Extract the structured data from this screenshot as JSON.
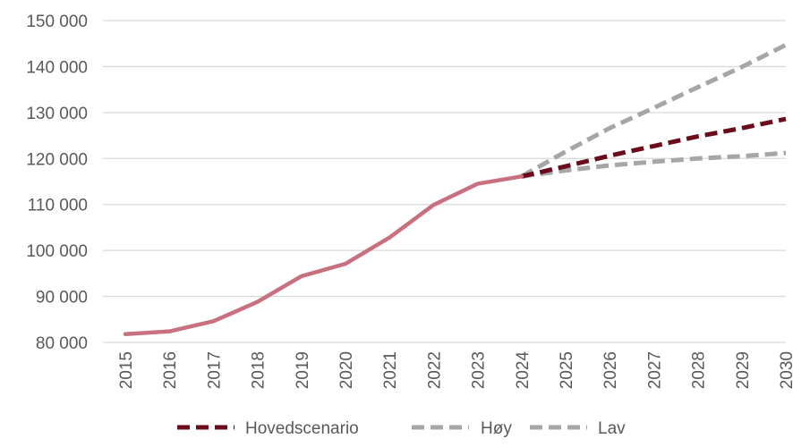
{
  "chart_data": {
    "type": "line",
    "title": "",
    "xlabel": "",
    "ylabel": "",
    "ylim": [
      80000,
      150000
    ],
    "yticks": [
      80000,
      90000,
      100000,
      110000,
      120000,
      130000,
      140000,
      150000
    ],
    "ytick_labels": [
      "80 000",
      "90 000",
      "100 000",
      "110 000",
      "120 000",
      "130 000",
      "140 000",
      "150 000"
    ],
    "x": [
      "2015",
      "2016",
      "2017",
      "2018",
      "2019",
      "2020",
      "2021",
      "2022",
      "2023",
      "2024",
      "2025",
      "2026",
      "2027",
      "2028",
      "2029",
      "2030"
    ],
    "grid": "horizontal",
    "legend_position": "bottom",
    "historical": {
      "color": "#c9707f",
      "values": [
        81800,
        82400,
        84600,
        88800,
        94400,
        97100,
        102800,
        109900,
        114500,
        116100,
        null,
        null,
        null,
        null,
        null,
        null
      ]
    },
    "series": [
      {
        "name": "Hovedscenario",
        "color": "#6b0c1c",
        "dash": "dashed",
        "values": [
          null,
          null,
          null,
          null,
          null,
          null,
          null,
          null,
          null,
          116100,
          118300,
          120600,
          122700,
          124800,
          126600,
          128600
        ]
      },
      {
        "name": "Høy",
        "color": "#a6a6a6",
        "dash": "dashed",
        "values": [
          null,
          null,
          null,
          null,
          null,
          null,
          null,
          null,
          null,
          116100,
          121500,
          126600,
          131000,
          135500,
          139900,
          144700
        ]
      },
      {
        "name": "Lav",
        "color": "#a6a6a6",
        "dash": "dashed",
        "values": [
          null,
          null,
          null,
          null,
          null,
          null,
          null,
          null,
          null,
          116100,
          117400,
          118500,
          119300,
          120000,
          120500,
          121200
        ]
      }
    ]
  }
}
